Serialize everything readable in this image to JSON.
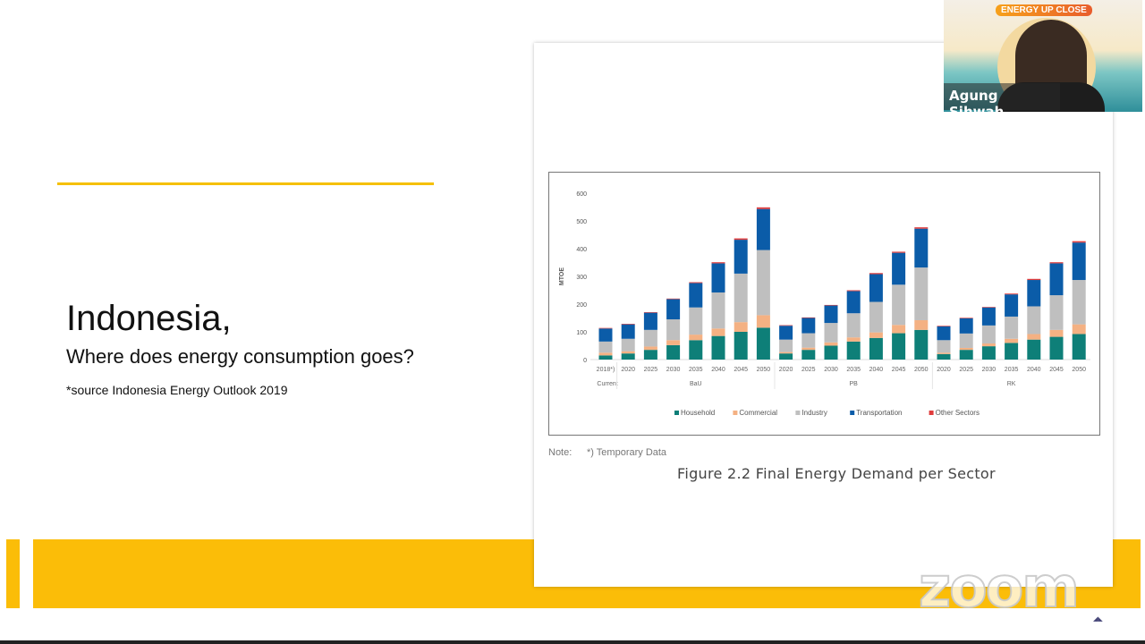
{
  "slide": {
    "title": "Indonesia,",
    "subtitle": "Where does energy consumption goes?",
    "source": "*source Indonesia Energy Outlook 2019",
    "note_label": "Note:",
    "note_text": "*) Temporary Data",
    "caption": "Figure 2.2 Final Energy Demand per Sector",
    "accent": "#fbbd08"
  },
  "video": {
    "participant_name": "Agung Sihwah...",
    "event_banner": "ENERGY UP CLOSE"
  },
  "watermark": "zoom",
  "chart_data": {
    "type": "bar",
    "stacked": true,
    "ylabel": "MTOE",
    "ylim": [
      0,
      600
    ],
    "yticks": [
      "0",
      "100",
      "200",
      "300",
      "400",
      "500",
      "600"
    ],
    "categories": [
      "2018*)",
      "2020",
      "2025",
      "2030",
      "2035",
      "2040",
      "2045",
      "2050",
      "2020",
      "2025",
      "2030",
      "2035",
      "2040",
      "2045",
      "2050",
      "2020",
      "2025",
      "2030",
      "2035",
      "2040",
      "2045",
      "2050"
    ],
    "groups": [
      {
        "label": "Current",
        "count": 1
      },
      {
        "label": "BaU",
        "count": 7
      },
      {
        "label": "PB",
        "count": 7
      },
      {
        "label": "RK",
        "count": 7
      }
    ],
    "series": [
      {
        "name": "Household",
        "color": "#0e7f78",
        "values": [
          15,
          22,
          35,
          52,
          70,
          85,
          100,
          115,
          22,
          35,
          50,
          65,
          78,
          95,
          107,
          20,
          35,
          48,
          60,
          72,
          82,
          92
        ]
      },
      {
        "name": "Commercial",
        "color": "#f4b183",
        "values": [
          10,
          8,
          12,
          18,
          20,
          27,
          35,
          45,
          5,
          8,
          12,
          15,
          20,
          30,
          35,
          5,
          7,
          10,
          15,
          20,
          25,
          35
        ]
      },
      {
        "name": "Industry",
        "color": "#bfbfbf",
        "values": [
          40,
          45,
          60,
          75,
          98,
          130,
          175,
          235,
          45,
          52,
          70,
          87,
          110,
          145,
          190,
          45,
          52,
          65,
          80,
          100,
          125,
          160
        ]
      },
      {
        "name": "Transportation",
        "color": "#0b5ca8",
        "values": [
          47,
          52,
          62,
          73,
          88,
          105,
          122,
          148,
          50,
          55,
          63,
          80,
          100,
          115,
          140,
          50,
          55,
          65,
          80,
          95,
          115,
          135
        ]
      },
      {
        "name": "Other Sectors",
        "color": "#e03c3c",
        "values": [
          2,
          2,
          2,
          2,
          3,
          4,
          5,
          6,
          2,
          2,
          2,
          3,
          4,
          4,
          5,
          2,
          2,
          2,
          3,
          4,
          4,
          5
        ]
      }
    ]
  }
}
